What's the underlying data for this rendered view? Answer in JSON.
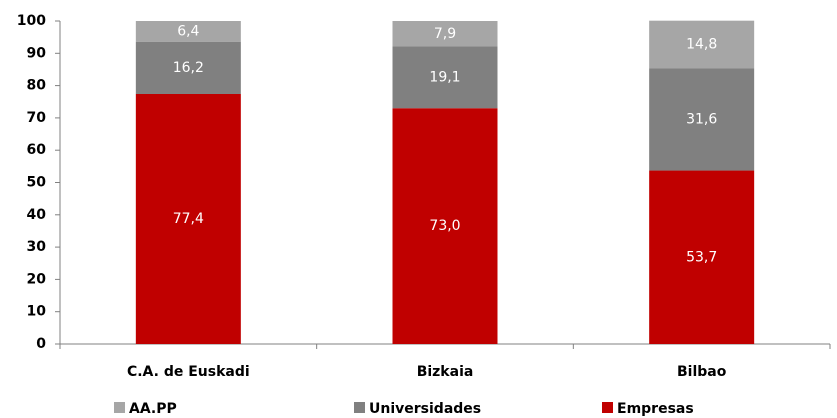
{
  "chart_data": {
    "type": "stacked_bar",
    "categories": [
      "C.A. de Euskadi",
      "Bizkaia",
      "Bilbao"
    ],
    "series": [
      {
        "name": "AA.PP",
        "color": "#a6a6a6",
        "values": [
          6.4,
          7.9,
          14.8
        ],
        "value_labels": [
          "6,4",
          "7,9",
          "14,8"
        ]
      },
      {
        "name": "Universidades",
        "color": "#808080",
        "values": [
          16.2,
          19.1,
          31.6
        ],
        "value_labels": [
          "16,2",
          "19,1",
          "31,6"
        ]
      },
      {
        "name": "Empresas",
        "color": "#c00000",
        "values": [
          77.4,
          73.0,
          53.7
        ],
        "value_labels": [
          "77,4",
          "73,0",
          "53,7"
        ]
      }
    ],
    "ylim": [
      0,
      100
    ],
    "yticks": [
      0,
      10,
      20,
      30,
      40,
      50,
      60,
      70,
      80,
      90,
      100
    ],
    "grid": false
  }
}
